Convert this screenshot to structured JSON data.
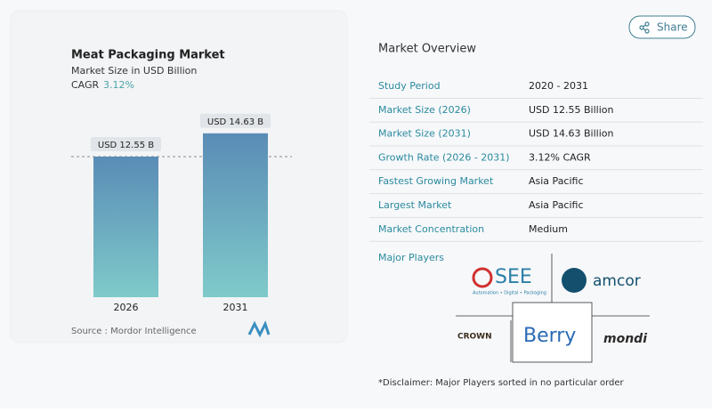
{
  "chart_data": {
    "type": "bar",
    "title": "Meat Packaging Market",
    "subtitle": "Market Size in USD Billion",
    "cagr_label": "CAGR",
    "cagr": "3.12%",
    "categories": [
      "2026",
      "2031"
    ],
    "values": [
      12.55,
      14.63
    ],
    "value_labels": [
      "USD 12.55 B",
      "USD 14.63 B"
    ],
    "colors": [
      "#5a8cb6",
      "#7fcaca"
    ],
    "source": "Source :  Mordor Intelligence"
  },
  "share": "Share",
  "overview": {
    "title": "Market Overview",
    "rows": [
      [
        "Study Period",
        "2020 - 2031"
      ],
      [
        "Market Size (2026)",
        "USD 12.55 Billion"
      ],
      [
        "Market Size (2031)",
        "USD 14.63 Billion"
      ],
      [
        "Growth Rate (2026 - 2031)",
        "3.12% CAGR"
      ],
      [
        "Fastest Growing Market",
        "Asia Pacific"
      ],
      [
        "Largest Market",
        "Asia Pacific"
      ],
      [
        "Market Concentration",
        "Medium"
      ]
    ]
  },
  "players": {
    "title": "Major Players",
    "logos": [
      "SEE",
      "amcor",
      "CROWN",
      "Berry",
      "mondi"
    ],
    "see_tagline": "Automation • Digital • Packaging"
  },
  "disclaimer": "*Disclaimer: Major Players sorted in no particular order"
}
